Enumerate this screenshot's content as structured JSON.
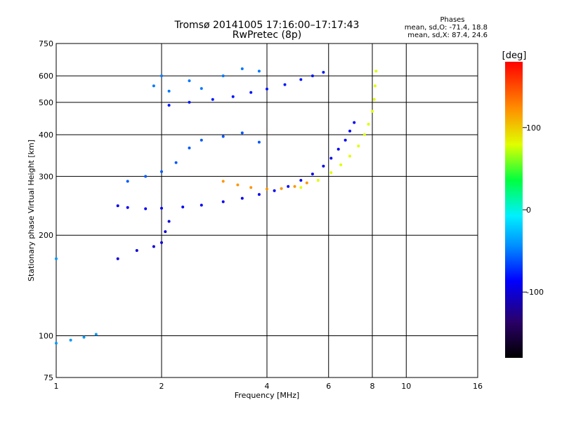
{
  "chart_data": {
    "type": "scatter",
    "title": "Tromsø 20141005 17:16:00–17:17:43",
    "subtitle": "RwPretec (8p)",
    "xlabel": "Frequency [MHz]",
    "ylabel": "Stationary phase Virtual Height [km]",
    "x_scale": "log",
    "y_scale": "log",
    "xlim": [
      1,
      16
    ],
    "ylim": [
      75,
      750
    ],
    "x_ticks": [
      1,
      2,
      4,
      6,
      8,
      10,
      16
    ],
    "y_ticks": [
      75,
      100,
      200,
      300,
      400,
      500,
      600,
      750
    ],
    "grid": true,
    "phase_stats": {
      "heading": "Phases",
      "line_o": "mean, sd,O: -71.4, 18.8",
      "line_x": "mean, sd,X:  87.4, 24.6"
    },
    "colorbar": {
      "label": "[deg]",
      "range": [
        -180,
        180
      ],
      "ticks": [
        100,
        0,
        -100
      ],
      "tick_labels": [
        "100",
        "0",
        "-100"
      ],
      "colors": [
        "#000000",
        "#2a0066",
        "#0000ff",
        "#0090ff",
        "#00f0ff",
        "#00ff40",
        "#e0ff00",
        "#ff9000",
        "#ff0000"
      ]
    },
    "series": [
      {
        "kind": "O-trace lower (blue)",
        "phase": -90,
        "points": [
          [
            1.5,
            245
          ],
          [
            1.6,
            242
          ],
          [
            1.8,
            240
          ],
          [
            2.0,
            241
          ],
          [
            2.3,
            243
          ],
          [
            2.6,
            246
          ],
          [
            3.0,
            252
          ],
          [
            3.4,
            258
          ],
          [
            3.8,
            265
          ],
          [
            4.2,
            272
          ],
          [
            4.6,
            280
          ],
          [
            5.0,
            292
          ],
          [
            5.4,
            305
          ],
          [
            5.8,
            322
          ],
          [
            6.1,
            340
          ],
          [
            6.4,
            362
          ],
          [
            6.7,
            385
          ],
          [
            6.9,
            410
          ],
          [
            7.1,
            435
          ]
        ]
      },
      {
        "kind": "O-trace upper (blue)",
        "phase": -80,
        "points": [
          [
            2.1,
            490
          ],
          [
            2.4,
            500
          ],
          [
            2.8,
            510
          ],
          [
            3.2,
            520
          ],
          [
            3.6,
            535
          ],
          [
            4.0,
            548
          ],
          [
            4.5,
            565
          ],
          [
            5.0,
            585
          ],
          [
            5.4,
            600
          ],
          [
            5.8,
            615
          ]
        ]
      },
      {
        "kind": "X-trace lower (orange)",
        "phase": 120,
        "points": [
          [
            3.0,
            290
          ],
          [
            3.3,
            283
          ],
          [
            3.6,
            278
          ],
          [
            4.0,
            275
          ],
          [
            4.4,
            276
          ],
          [
            4.8,
            280
          ],
          [
            5.2,
            287
          ]
        ]
      },
      {
        "kind": "X-trace (yellow-green)",
        "phase": 80,
        "points": [
          [
            5.0,
            278
          ],
          [
            5.6,
            292
          ],
          [
            6.1,
            308
          ],
          [
            6.5,
            325
          ],
          [
            6.9,
            345
          ],
          [
            7.3,
            370
          ],
          [
            7.6,
            400
          ],
          [
            7.8,
            430
          ],
          [
            8.0,
            470
          ],
          [
            8.1,
            510
          ],
          [
            8.15,
            560
          ],
          [
            8.2,
            620
          ]
        ]
      },
      {
        "kind": "E/low cluster (blue)",
        "phase": -100,
        "points": [
          [
            1.5,
            170
          ],
          [
            1.7,
            180
          ],
          [
            1.9,
            185
          ],
          [
            2.0,
            190
          ],
          [
            2.05,
            205
          ],
          [
            2.1,
            220
          ]
        ]
      },
      {
        "kind": "F1 cluster (light blue)",
        "phase": -60,
        "points": [
          [
            1.6,
            290
          ],
          [
            1.8,
            300
          ],
          [
            2.0,
            310
          ],
          [
            2.2,
            330
          ],
          [
            2.4,
            365
          ],
          [
            2.6,
            385
          ],
          [
            3.0,
            395
          ],
          [
            3.4,
            405
          ],
          [
            3.8,
            380
          ]
        ]
      },
      {
        "kind": "top cluster (light blue)",
        "phase": -50,
        "points": [
          [
            1.9,
            560
          ],
          [
            2.0,
            600
          ],
          [
            2.1,
            540
          ],
          [
            2.4,
            580
          ],
          [
            2.6,
            550
          ],
          [
            3.0,
            600
          ],
          [
            3.4,
            630
          ],
          [
            3.8,
            620
          ]
        ]
      },
      {
        "kind": "sporadic low (cyan)",
        "phase": -40,
        "points": [
          [
            1.0,
            95
          ],
          [
            1.1,
            97
          ],
          [
            1.2,
            99
          ],
          [
            1.3,
            101
          ],
          [
            1.0,
            170
          ]
        ]
      }
    ]
  }
}
